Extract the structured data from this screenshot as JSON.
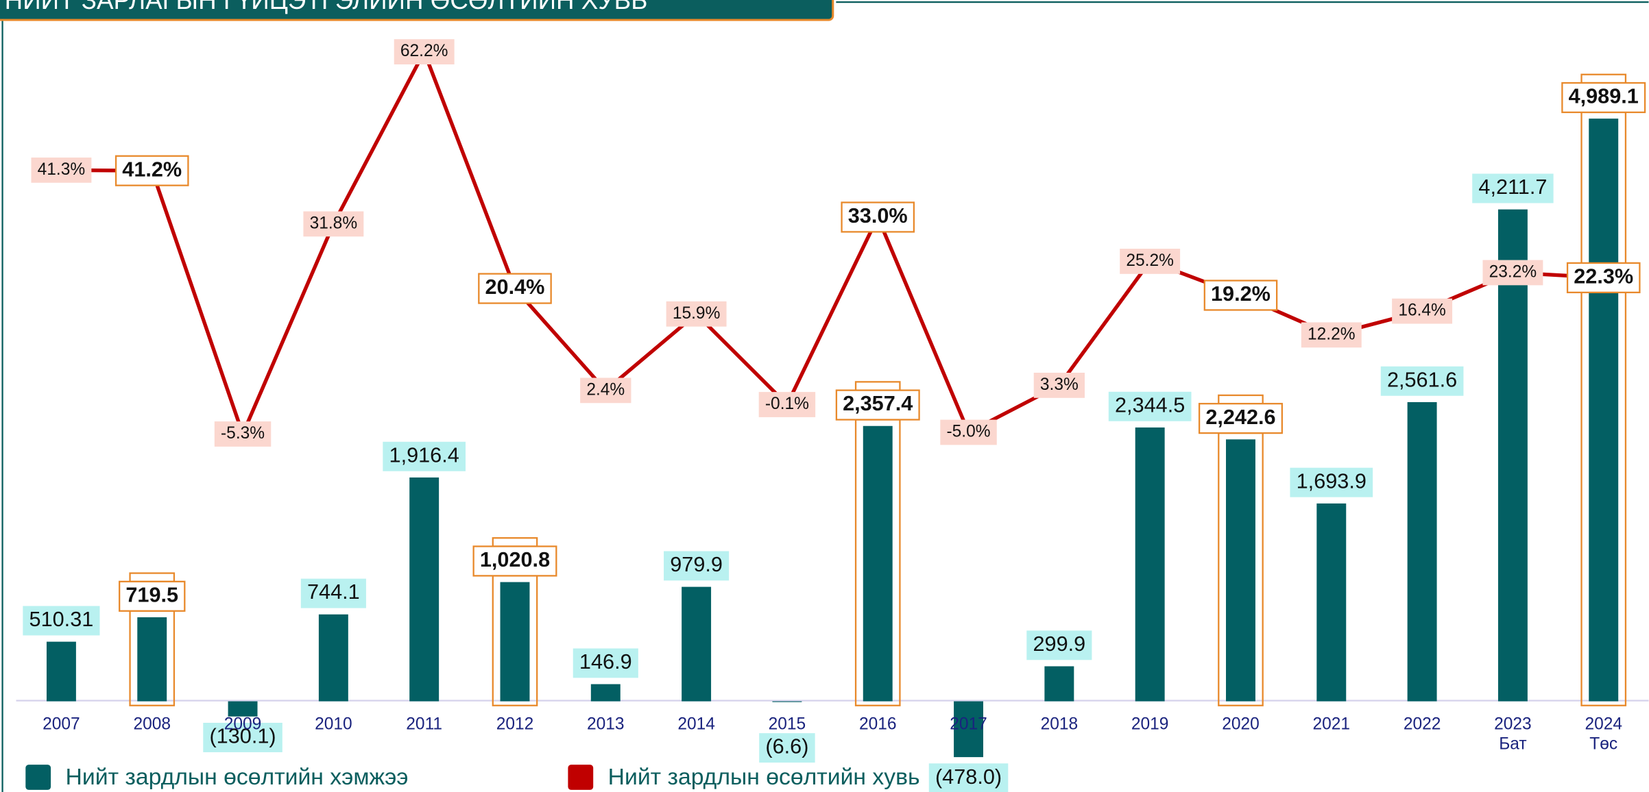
{
  "chart_data": {
    "type": "bar_line",
    "title": "НИЙТ ЗАРЛАГЫН ГҮЙЦЭТГЭЛИЙН ӨСӨЛТИЙН ХУВЬ",
    "categories": [
      "2007",
      "2008",
      "2009",
      "2010",
      "2011",
      "2012",
      "2013",
      "2014",
      "2015",
      "2016",
      "2017",
      "2018",
      "2019",
      "2020",
      "2021",
      "2022",
      "2023",
      "2024"
    ],
    "sublabels": [
      null,
      null,
      null,
      null,
      null,
      null,
      null,
      null,
      null,
      null,
      null,
      null,
      null,
      null,
      null,
      null,
      "Бат",
      "Төс"
    ],
    "highlight": [
      false,
      true,
      false,
      false,
      false,
      true,
      false,
      false,
      false,
      true,
      false,
      false,
      false,
      true,
      false,
      false,
      false,
      true
    ],
    "ylim": [
      -800,
      5600
    ],
    "y2lim": [
      -69,
      63
    ],
    "legend": "bottom",
    "series": [
      {
        "name": "Нийт зардлын өсөлтийн хэмжээ",
        "type": "bar",
        "color": "#035f63",
        "label_bg": "#b9f1f0",
        "values": [
          510.31,
          719.5,
          -130.1,
          744.1,
          1916.4,
          1020.8,
          146.9,
          979.9,
          -6.6,
          2357.4,
          -478.0,
          299.9,
          2344.5,
          2242.6,
          1693.9,
          2561.6,
          4211.7,
          4989.1
        ],
        "value_labels": [
          "510.31",
          "719.5",
          "(130.1)",
          "744.1",
          "1,916.4",
          "1,020.8",
          "146.9",
          "979.9",
          "(6.6)",
          "2,357.4",
          "(478.0)",
          "299.9",
          "2,344.5",
          "2,242.6",
          "1,693.9",
          "2,561.6",
          "4,211.7",
          "4,989.1"
        ]
      },
      {
        "name": "Нийт зардлын өсөлтийн хувь",
        "type": "line",
        "axis": "y2",
        "color": "#c00000",
        "label_bg": "#fbd7cf",
        "values": [
          41.3,
          41.2,
          -5.3,
          31.8,
          62.2,
          20.4,
          2.4,
          15.9,
          -0.1,
          33.0,
          -5.0,
          3.3,
          25.2,
          19.2,
          12.2,
          16.4,
          23.2,
          22.3
        ],
        "value_labels": [
          "41.3%",
          "41.2%",
          "-5.3%",
          "31.8%",
          "62.2%",
          "20.4%",
          "2.4%",
          "15.9%",
          "-0.1%",
          "33.0%",
          "-5.0%",
          "3.3%",
          "25.2%",
          "19.2%",
          "12.2%",
          "16.4%",
          "23.2%",
          "22.3%"
        ]
      }
    ]
  }
}
